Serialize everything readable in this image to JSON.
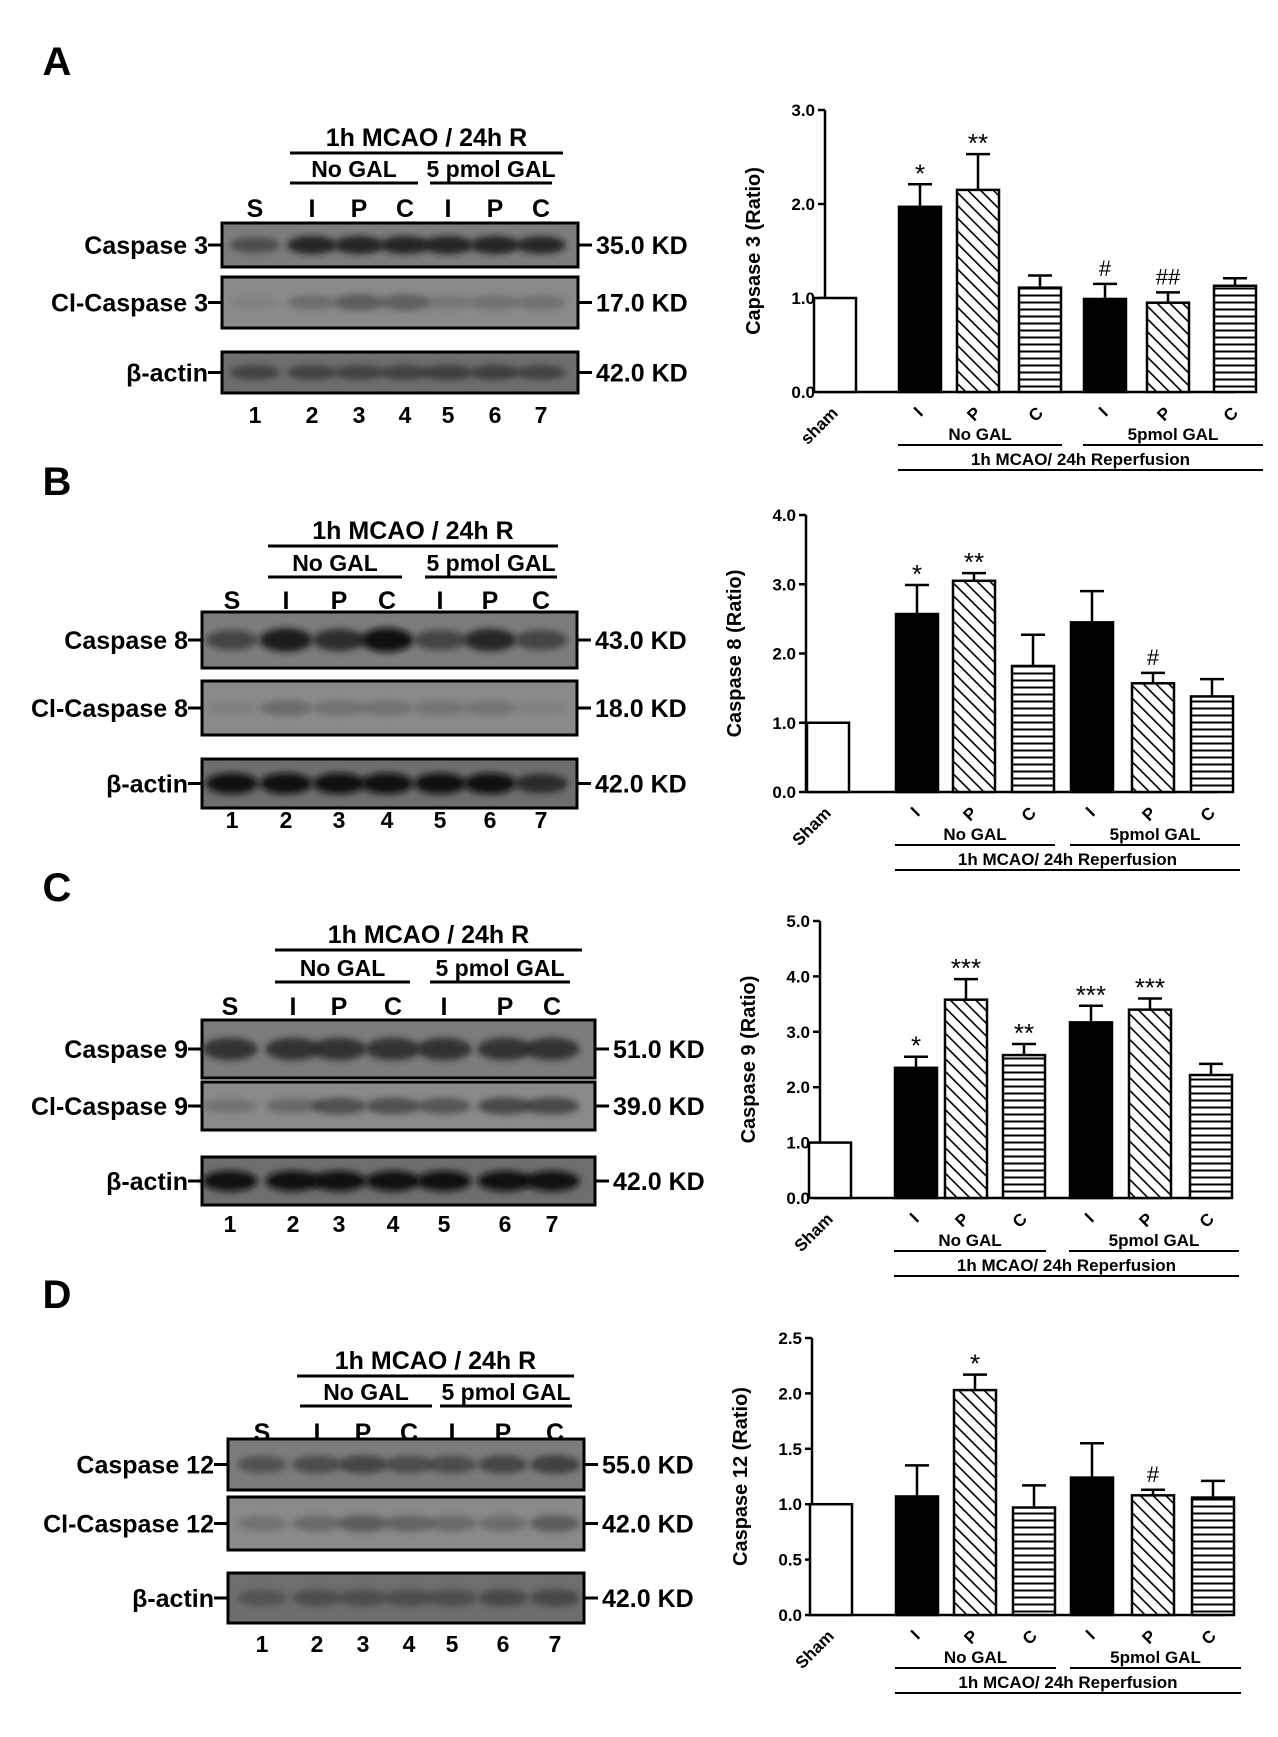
{
  "panels": [
    {
      "letter": "A",
      "blot": {
        "header": "1h MCAO / 24h R",
        "group1": "No GAL",
        "group2": "5 pmol GAL",
        "lane_tops": [
          "S",
          "I",
          "P",
          "C",
          "I",
          "P",
          "C"
        ],
        "lane_numbers": [
          "1",
          "2",
          "3",
          "4",
          "5",
          "6",
          "7"
        ],
        "rows": [
          {
            "label": "Caspase 3",
            "kd": "35.0 KD"
          },
          {
            "label": "Cl-Caspase 3",
            "kd": "17.0 KD"
          },
          {
            "label": "β-actin",
            "kd": "42.0 KD"
          }
        ]
      }
    },
    {
      "letter": "B",
      "blot": {
        "header": "1h MCAO / 24h R",
        "group1": "No GAL",
        "group2": "5 pmol GAL",
        "lane_tops": [
          "S",
          "I",
          "P",
          "C",
          "I",
          "P",
          "C"
        ],
        "lane_numbers": [
          "1",
          "2",
          "3",
          "4",
          "5",
          "6",
          "7"
        ],
        "rows": [
          {
            "label": "Caspase 8",
            "kd": "43.0 KD"
          },
          {
            "label": "Cl-Caspase 8",
            "kd": "18.0 KD"
          },
          {
            "label": "β-actin",
            "kd": "42.0 KD"
          }
        ]
      }
    },
    {
      "letter": "C",
      "blot": {
        "header": "1h MCAO / 24h R",
        "group1": "No GAL",
        "group2": "5 pmol GAL",
        "lane_tops": [
          "S",
          "I",
          "P",
          "C",
          "I",
          "P",
          "C"
        ],
        "lane_numbers": [
          "1",
          "2",
          "3",
          "4",
          "5",
          "6",
          "7"
        ],
        "rows": [
          {
            "label": "Caspase 9",
            "kd": "51.0 KD"
          },
          {
            "label": "Cl-Caspase 9",
            "kd": "39.0 KD"
          },
          {
            "label": "β-actin",
            "kd": "42.0 KD"
          }
        ]
      }
    },
    {
      "letter": "D",
      "blot": {
        "header": "1h MCAO / 24h R",
        "group1": "No GAL",
        "group2": "5 pmol GAL",
        "lane_tops": [
          "S",
          "I",
          "P",
          "C",
          "I",
          "P",
          "C"
        ],
        "lane_numbers": [
          "1",
          "2",
          "3",
          "4",
          "5",
          "6",
          "7"
        ],
        "rows": [
          {
            "label": "Caspase 12",
            "kd": "55.0 KD"
          },
          {
            "label": "Cl-Caspase 12",
            "kd": "42.0 KD"
          },
          {
            "label": "β-actin",
            "kd": "42.0 KD"
          }
        ]
      }
    }
  ],
  "chart_data": [
    {
      "type": "bar",
      "ylabel": "Capsase 3 (Ratio)",
      "ylim": [
        0,
        3.0
      ],
      "yticks": [
        "0.0",
        "1.0",
        "2.0",
        "3.0"
      ],
      "categories": [
        "sham",
        "I",
        "P",
        "C",
        "I",
        "P",
        "C"
      ],
      "values": [
        1.0,
        1.97,
        2.15,
        1.11,
        0.99,
        0.95,
        1.13
      ],
      "errors": [
        0,
        0.24,
        0.38,
        0.13,
        0.16,
        0.11,
        0.08
      ],
      "annotations": [
        "",
        "*",
        "**",
        "",
        "#",
        "##",
        ""
      ],
      "fills": [
        "white",
        "black",
        "hatch",
        "hstripe",
        "black",
        "hatch",
        "hstripe"
      ],
      "group1": "No GAL",
      "group2": "5pmol GAL",
      "condition": "1h MCAO/ 24h Reperfusion"
    },
    {
      "type": "bar",
      "ylabel": "Caspase 8 (Ratio)",
      "ylim": [
        0,
        4.0
      ],
      "yticks": [
        "0.0",
        "1.0",
        "2.0",
        "3.0",
        "4.0"
      ],
      "categories": [
        "Sham",
        "I",
        "P",
        "C",
        "I",
        "P",
        "C"
      ],
      "values": [
        1.0,
        2.57,
        3.05,
        1.82,
        2.45,
        1.57,
        1.38
      ],
      "errors": [
        0,
        0.42,
        0.11,
        0.45,
        0.45,
        0.15,
        0.25
      ],
      "annotations": [
        "",
        "*",
        "**",
        "",
        "",
        "#",
        ""
      ],
      "fills": [
        "white",
        "black",
        "hatch",
        "hstripe",
        "black",
        "hatch",
        "hstripe"
      ],
      "group1": "No GAL",
      "group2": "5pmol GAL",
      "condition": "1h MCAO/ 24h Reperfusion"
    },
    {
      "type": "bar",
      "ylabel": "Caspase 9 (Ratio)",
      "ylim": [
        0,
        5.0
      ],
      "yticks": [
        "0.0",
        "1.0",
        "2.0",
        "3.0",
        "4.0",
        "5.0"
      ],
      "categories": [
        "Sham",
        "I",
        "P",
        "C",
        "I",
        "P",
        "C"
      ],
      "values": [
        1.0,
        2.35,
        3.58,
        2.58,
        3.17,
        3.4,
        2.22
      ],
      "errors": [
        0,
        0.2,
        0.37,
        0.2,
        0.3,
        0.2,
        0.2
      ],
      "annotations": [
        "",
        "*",
        "***",
        "**",
        "***",
        "***",
        ""
      ],
      "fills": [
        "white",
        "black",
        "hatch",
        "hstripe",
        "black",
        "hatch",
        "hstripe"
      ],
      "group1": "No GAL",
      "group2": "5pmol GAL",
      "condition": "1h MCAO/ 24h Reperfusion"
    },
    {
      "type": "bar",
      "ylabel": "Caspase 12 (Ratio)",
      "ylim": [
        0,
        2.5
      ],
      "yticks": [
        "0.0",
        "0.5",
        "1.0",
        "1.5",
        "2.0",
        "2.5"
      ],
      "categories": [
        "Sham",
        "I",
        "P",
        "C",
        "I",
        "P",
        "C"
      ],
      "values": [
        1.0,
        1.07,
        2.03,
        0.97,
        1.24,
        1.08,
        1.06
      ],
      "errors": [
        0,
        0.28,
        0.14,
        0.2,
        0.31,
        0.05,
        0.15
      ],
      "annotations": [
        "",
        "",
        "*",
        "",
        "",
        "#",
        ""
      ],
      "fills": [
        "white",
        "black",
        "hatch",
        "hstripe",
        "black",
        "hatch",
        "hstripe"
      ],
      "group1": "No GAL",
      "group2": "5pmol GAL",
      "condition": "1h MCAO/ 24h Reperfusion"
    }
  ]
}
